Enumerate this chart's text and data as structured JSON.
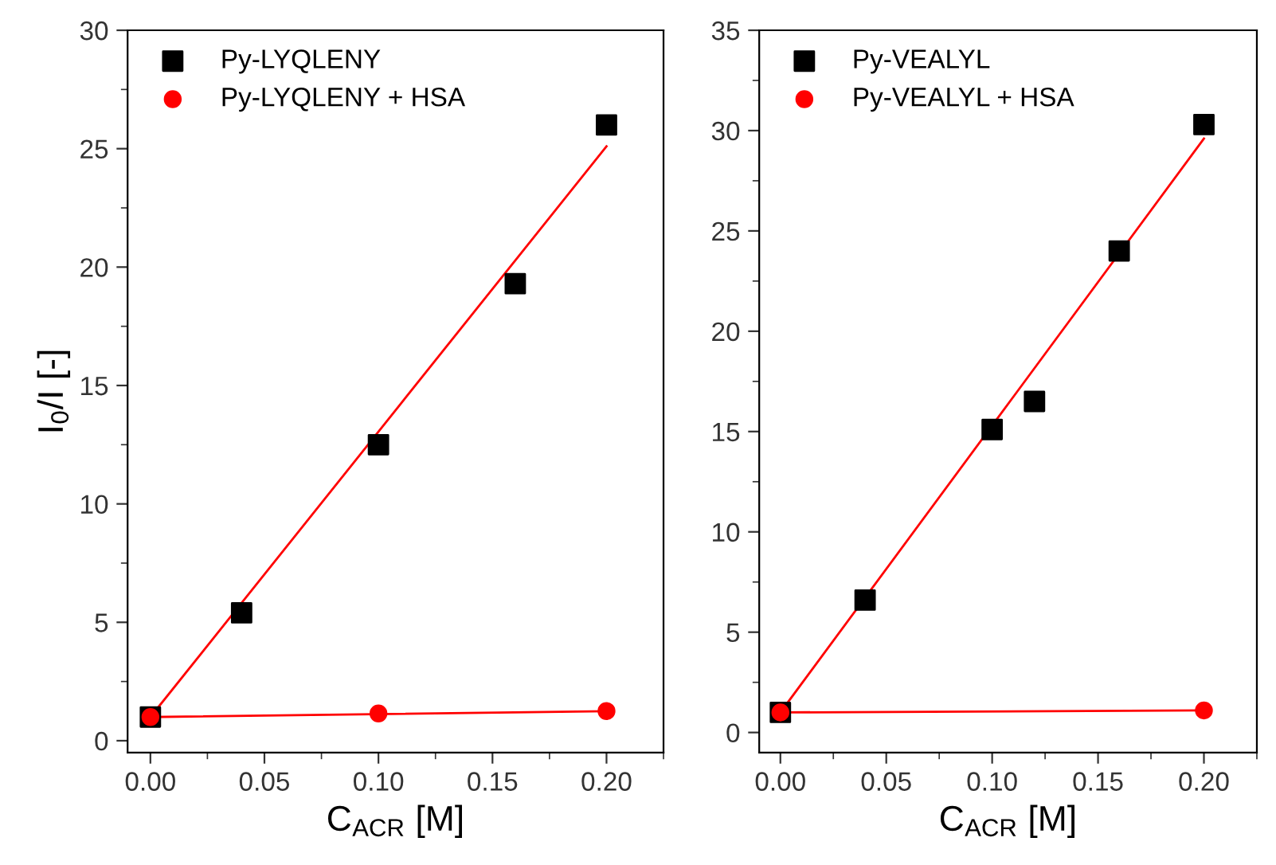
{
  "chart_data": [
    {
      "type": "scatter",
      "xlabel": "C$_{ACR}$ [M]",
      "ylabel": "I$_{0}$/I [-]",
      "xlim": [
        -0.01,
        0.225
      ],
      "xticks": [
        {
          "value": 0,
          "label": "0.00"
        },
        {
          "value": 0.05,
          "label": "0.05"
        },
        {
          "value": 0.1,
          "label": "0.10"
        },
        {
          "value": 0.15,
          "label": "0.15"
        },
        {
          "value": 0.2,
          "label": "0.20"
        }
      ],
      "ylim": [
        -0.5,
        30
      ],
      "yticks": [
        0,
        5,
        10,
        15,
        20,
        25,
        30
      ],
      "legend": "top left",
      "grid": false,
      "series": [
        {
          "name": "Py-LYQLENY",
          "color": "#000000",
          "marker": "square",
          "x": [
            0,
            0.04,
            0.1,
            0.16,
            0.2
          ],
          "values": [
            1.0,
            5.4,
            12.5,
            19.3,
            26.0
          ]
        },
        {
          "name": "Py-LYQLENY + HSA",
          "color": "#ff0000",
          "marker": "circle",
          "x": [
            0,
            0.1,
            0.2
          ],
          "values": [
            1.0,
            1.15,
            1.25
          ]
        },
        {
          "type": "line",
          "color": "#ff0000",
          "marker": "none",
          "line_style": "solid",
          "x": [
            0,
            0.2
          ],
          "values": [
            1.0,
            25.1
          ]
        },
        {
          "type": "line",
          "color": "#ff0000",
          "marker": "none",
          "line_style": "solid",
          "x": [
            0,
            0.2
          ],
          "values": [
            1.0,
            1.25
          ]
        }
      ]
    },
    {
      "type": "scatter",
      "xlabel": "C$_{ACR}$ [M]",
      "xlim": [
        -0.01,
        0.225
      ],
      "xticks": [
        {
          "value": 0,
          "label": "0.00"
        },
        {
          "value": 0.05,
          "label": "0.05"
        },
        {
          "value": 0.1,
          "label": "0.10"
        },
        {
          "value": 0.15,
          "label": "0.15"
        },
        {
          "value": 0.2,
          "label": "0.20"
        }
      ],
      "ylim": [
        -1,
        35
      ],
      "yticks": [
        0,
        5,
        10,
        15,
        20,
        25,
        30,
        35
      ],
      "legend": "top left",
      "grid": false,
      "series": [
        {
          "name": "Py-VEALYL",
          "color": "#000000",
          "marker": "square",
          "x": [
            0,
            0.04,
            0.1,
            0.12,
            0.16,
            0.2
          ],
          "values": [
            1.0,
            6.6,
            15.1,
            16.5,
            24.0,
            30.3
          ]
        },
        {
          "name": "Py-VEALYL + HSA",
          "color": "#ff0000",
          "marker": "circle",
          "x": [
            0,
            0.2
          ],
          "values": [
            1.0,
            1.1
          ]
        },
        {
          "type": "line",
          "color": "#ff0000",
          "marker": "none",
          "line_style": "solid",
          "x": [
            0,
            0.2
          ],
          "values": [
            1.0,
            29.6
          ]
        },
        {
          "type": "line",
          "color": "#ff0000",
          "marker": "none",
          "line_style": "solid",
          "x": [
            0,
            0.2
          ],
          "values": [
            1.0,
            1.1
          ]
        }
      ]
    }
  ]
}
